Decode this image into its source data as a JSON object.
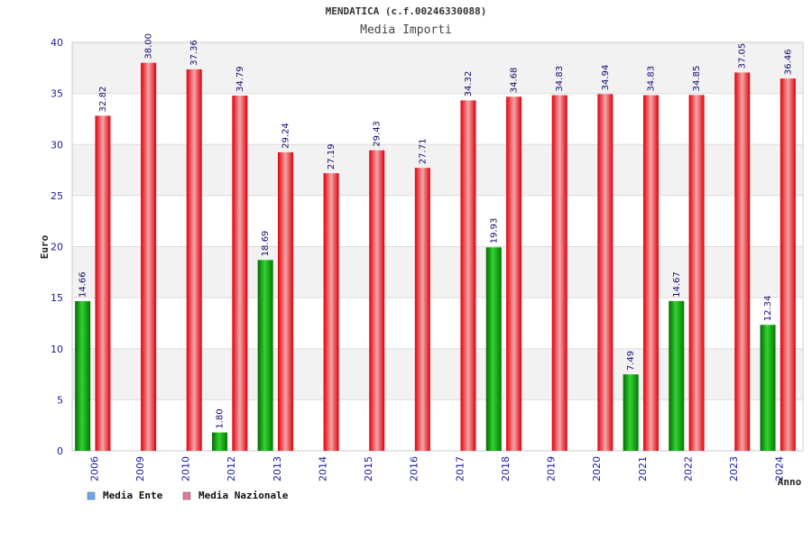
{
  "chart_data": {
    "type": "bar",
    "title": "MENDATICA (c.f.00246330088)",
    "subtitle": "Media Importi",
    "xlabel": "Anno",
    "ylabel": "Euro",
    "ylim": [
      0,
      40
    ],
    "yticks": [
      0,
      5,
      10,
      15,
      20,
      25,
      30,
      35,
      40
    ],
    "grid": true,
    "legend_position": "bottom-left",
    "categories": [
      "2006",
      "2009",
      "2010",
      "2012",
      "2013",
      "2014",
      "2015",
      "2016",
      "2017",
      "2018",
      "2019",
      "2020",
      "2021",
      "2022",
      "2023",
      "2024"
    ],
    "series": [
      {
        "name": "Media Ente",
        "color": "#00a000",
        "legend_color": "#6aa9e9",
        "values": [
          14.66,
          null,
          null,
          1.8,
          18.69,
          null,
          null,
          null,
          null,
          19.93,
          null,
          null,
          7.49,
          14.67,
          null,
          12.34
        ],
        "labels": [
          "14.66",
          "",
          "",
          "1.80",
          "18.69",
          "",
          "",
          "",
          "",
          "19.93",
          "",
          "",
          "7.49",
          "14.67",
          "",
          "12.34"
        ]
      },
      {
        "name": "Media Nazionale",
        "color": "#e8101a",
        "legend_color": "#e07aa0",
        "values": [
          32.82,
          38.0,
          37.36,
          34.79,
          29.24,
          27.19,
          29.43,
          27.71,
          34.32,
          34.68,
          34.83,
          34.94,
          34.83,
          34.85,
          37.05,
          36.46
        ],
        "labels": [
          "32.82",
          "38.00",
          "37.36",
          "34.79",
          "29.24",
          "27.19",
          "29.43",
          "27.71",
          "34.32",
          "34.68",
          "34.83",
          "34.94",
          "34.83",
          "34.85",
          "37.05",
          "36.46"
        ]
      }
    ]
  }
}
